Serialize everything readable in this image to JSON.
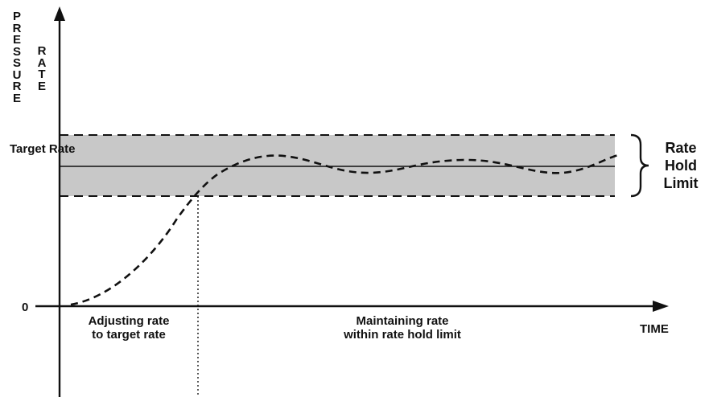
{
  "labels": {
    "y_axis_pressure": [
      "P",
      "R",
      "E",
      "S",
      "S",
      "U",
      "R",
      "E"
    ],
    "y_axis_rate": [
      "R",
      "A",
      "T",
      "E"
    ],
    "target_rate": "Target Rate",
    "zero": "0",
    "x_axis": "TIME",
    "phase_adjusting_line1": "Adjusting rate",
    "phase_adjusting_line2": "to target rate",
    "phase_maintaining_line1": "Maintaining rate",
    "phase_maintaining_line2": "within rate hold limit",
    "hold_limit_line1": "Rate",
    "hold_limit_line2": "Hold",
    "hold_limit_line3": "Limit"
  },
  "colors": {
    "band_fill": "#c8c8c8",
    "line": "#111111",
    "background": "#ffffff"
  }
}
